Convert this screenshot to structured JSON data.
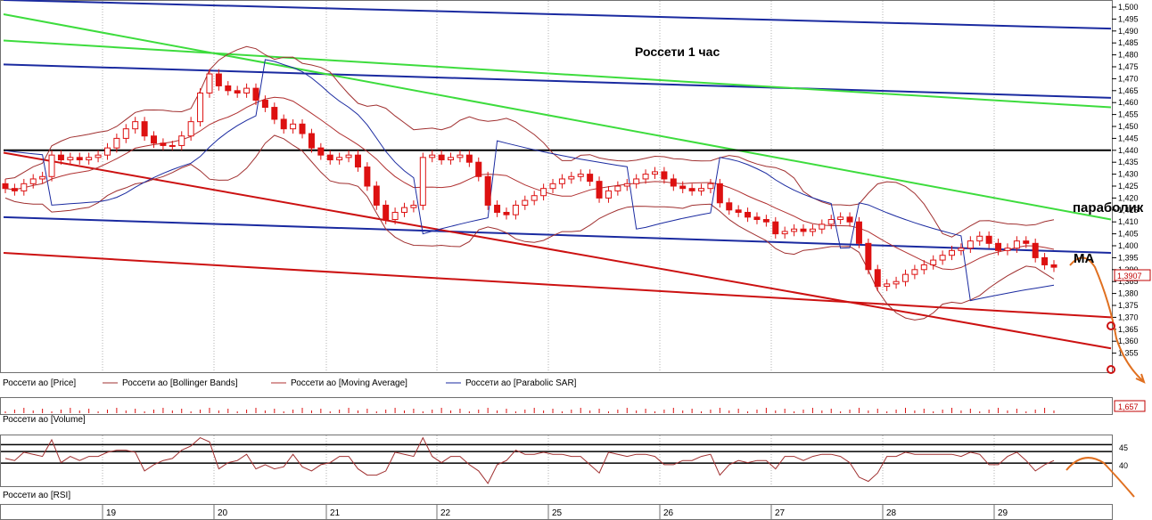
{
  "chart_data": {
    "type": "candlestick",
    "title": "Россети   1 час",
    "price_axis": {
      "ylim": [
        1.35,
        1.5
      ],
      "ticks": [
        "1,500",
        "1,495",
        "1,490",
        "1,485",
        "1,480",
        "1,475",
        "1,470",
        "1,465",
        "1,460",
        "1,455",
        "1,450",
        "1,445",
        "1,440",
        "1,435",
        "1,430",
        "1,425",
        "1,420",
        "1,415",
        "1,410",
        "1,405",
        "1,400",
        "1,395",
        "1,390",
        "1,385",
        "1,380",
        "1,375",
        "1,370",
        "1,365",
        "1,360",
        "1,355"
      ],
      "current_price_label": "1,3907"
    },
    "volume_axis": {
      "current_volume_label": "1,657"
    },
    "rsi_axis": {
      "ticks": [
        "45",
        "40"
      ],
      "levels": [
        48,
        45,
        40
      ]
    },
    "date_labels": [
      "19",
      "20",
      "21",
      "22",
      "25",
      "26",
      "27",
      "28",
      "29"
    ],
    "legend": {
      "price": [
        "Россети ао [Price]",
        "Россети ао [Bollinger Bands]",
        "Россети ао [Moving Average]",
        "Россети ао [Parabolic SAR]"
      ],
      "volume": "Россети ао [Volume]",
      "rsi": "Россети ао [RSI]"
    },
    "annotations": {
      "sar": "параболик",
      "ma": "МА"
    },
    "trend_lines": [
      {
        "color": "#1a2aa0",
        "from": [
          0,
          1.503
        ],
        "to": [
          1,
          1.491
        ]
      },
      {
        "color": "#1a2aa0",
        "from": [
          0,
          1.476
        ],
        "to": [
          1,
          1.462
        ]
      },
      {
        "color": "#1a2aa0",
        "from": [
          0,
          1.412
        ],
        "to": [
          1,
          1.397
        ]
      },
      {
        "color": "#3ddc3d",
        "from": [
          0,
          1.486
        ],
        "to": [
          1,
          1.458
        ]
      },
      {
        "color": "#3ddc3d",
        "from": [
          0,
          1.497
        ],
        "to": [
          1,
          1.411
        ]
      },
      {
        "color": "#000000",
        "from": [
          0,
          1.44
        ],
        "to": [
          1,
          1.44
        ]
      },
      {
        "color": "#cc1111",
        "from": [
          0,
          1.397
        ],
        "to": [
          1,
          1.37
        ]
      },
      {
        "color": "#cc1111",
        "from": [
          0,
          1.439
        ],
        "to": [
          1,
          1.357
        ]
      }
    ],
    "colors": {
      "candle": "#dd1111",
      "bollinger": "#a03030",
      "moving_average": "#b03030",
      "sar": "#1a2aa0",
      "grid": "#b0b0b0",
      "forecast": "#e07020"
    },
    "series": [
      {
        "name": "Россети ао [Price]",
        "values": [
          1.424,
          1.423,
          1.426,
          1.428,
          1.429,
          1.438,
          1.436,
          1.437,
          1.436,
          1.437,
          1.438,
          1.441,
          1.445,
          1.449,
          1.452,
          1.446,
          1.443,
          1.442,
          1.442,
          1.446,
          1.452,
          1.464,
          1.472,
          1.467,
          1.465,
          1.464,
          1.466,
          1.461,
          1.458,
          1.453,
          1.449,
          1.451,
          1.447,
          1.441,
          1.438,
          1.436,
          1.437,
          1.438,
          1.433,
          1.425,
          1.417,
          1.411,
          1.414,
          1.416,
          1.417,
          1.437,
          1.438,
          1.436,
          1.437,
          1.438,
          1.435,
          1.429,
          1.417,
          1.414,
          1.413,
          1.417,
          1.419,
          1.421,
          1.424,
          1.426,
          1.428,
          1.429,
          1.43,
          1.427,
          1.42,
          1.423,
          1.425,
          1.426,
          1.428,
          1.43,
          1.431,
          1.428,
          1.425,
          1.424,
          1.423,
          1.424,
          1.426,
          1.418,
          1.415,
          1.414,
          1.412,
          1.411,
          1.41,
          1.405,
          1.406,
          1.407,
          1.406,
          1.407,
          1.409,
          1.411,
          1.412,
          1.41,
          1.401,
          1.39,
          1.383,
          1.384,
          1.385,
          1.388,
          1.39,
          1.392,
          1.394,
          1.396,
          1.398,
          1.399,
          1.402,
          1.404,
          1.401,
          1.398,
          1.399,
          1.402,
          1.401,
          1.395,
          1.392,
          1.391
        ]
      }
    ]
  }
}
